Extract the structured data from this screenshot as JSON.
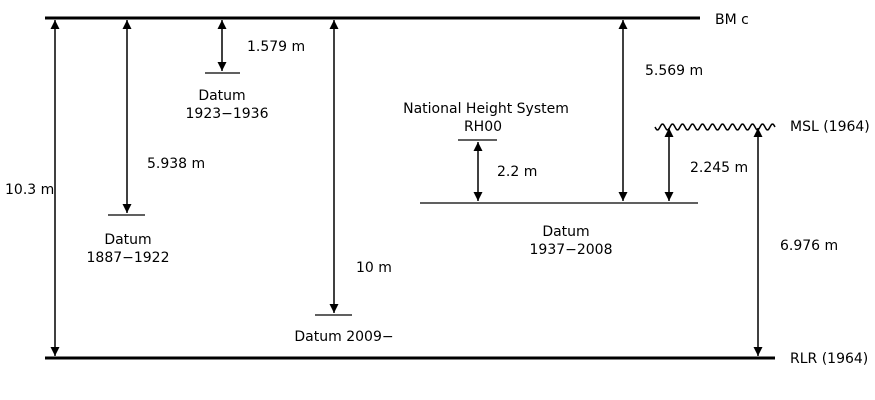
{
  "reference_lines": {
    "bm": "BM c",
    "rlr": "RLR (1964)",
    "msl": "MSL (1964)"
  },
  "datums": {
    "d1887": {
      "name": "Datum",
      "years": "1887−1922"
    },
    "d1923": {
      "name": "Datum",
      "years": "1923−1936"
    },
    "d1937": {
      "name": "Datum",
      "years": "1937−2008"
    },
    "d2009": {
      "name": "Datum 2009−"
    },
    "nhs": {
      "name": "National Height System",
      "code": "RH00"
    }
  },
  "measurements": {
    "bm_to_rlr": "10.3 m",
    "bm_to_1887": "5.938 m",
    "bm_to_1923": "1.579 m",
    "bm_to_2009": "10 m",
    "rh00_to_1937": "2.2 m",
    "bm_to_1937": "5.569 m",
    "msl_to_1937": "2.245 m",
    "msl_to_rlr": "6.976 m"
  }
}
